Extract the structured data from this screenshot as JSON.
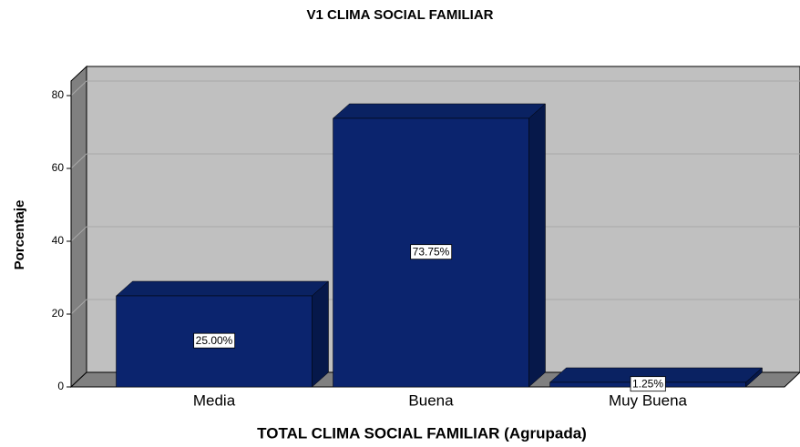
{
  "chart_data": {
    "type": "bar",
    "title": "V1 CLIMA SOCIAL FAMILIAR",
    "x_label": "TOTAL CLIMA SOCIAL FAMILIAR (Agrupada)",
    "y_label": "Porcentaje",
    "categories": [
      "Media",
      "Buena",
      "Muy Buena"
    ],
    "values": [
      25,
      73.75,
      1.25
    ],
    "value_labels": [
      "25.00%",
      "73.75%",
      "1.25%"
    ],
    "color": "#0b246e",
    "ylim": [
      0,
      84
    ],
    "yticks": [
      0,
      20,
      40,
      60,
      80
    ],
    "grid": true
  }
}
